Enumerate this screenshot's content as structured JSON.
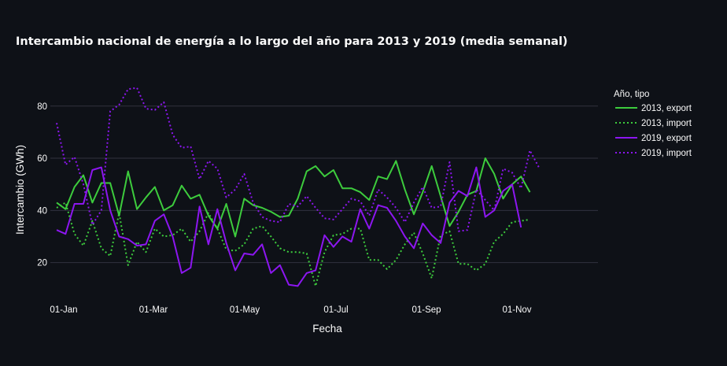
{
  "chart_data": {
    "type": "line",
    "title": "Intercambio nacional de energía a lo largo del año para 2013 y 2019 (media semanal)",
    "xlabel": "Fecha",
    "ylabel": "Intercambio (GWh)",
    "x_ticks": [
      "01-Jan",
      "01-Mar",
      "01-May",
      "01-Jul",
      "01-Sep",
      "01-Nov"
    ],
    "y_ticks": [
      20,
      40,
      60,
      80
    ],
    "ylim": [
      6,
      92
    ],
    "grid": true,
    "legend": {
      "title": "Año, tipo",
      "position": "right"
    },
    "colors": {
      "2013": "#3dcc3d",
      "2019": "#8c16f0"
    },
    "series": [
      {
        "name": "2013, export",
        "color": "#3dcc3d",
        "dash": "solid",
        "values": [
          43,
          40.5,
          49,
          53.5,
          43,
          50.5,
          50.5,
          38,
          55,
          40.5,
          45,
          49,
          40,
          42,
          49.5,
          44.5,
          46,
          38,
          33,
          42.5,
          30,
          44.5,
          42,
          41,
          39.5,
          37.5,
          38,
          44.5,
          55,
          57,
          53,
          55.5,
          48.5,
          48.5,
          47,
          44,
          53,
          52,
          59,
          48,
          38.5,
          47,
          57,
          45.5,
          34,
          39.5,
          46,
          47.5,
          60,
          54,
          44.5,
          50,
          53,
          47
        ]
      },
      {
        "name": "2013, import",
        "color": "#3dcc3d",
        "dash": "dot",
        "values": [
          41,
          43,
          31,
          26.5,
          36,
          25.5,
          22.5,
          39,
          19,
          28,
          24,
          33,
          30,
          30.5,
          33,
          28,
          32,
          39,
          33,
          25,
          24.5,
          27,
          33,
          34,
          30,
          25.5,
          24,
          24,
          23.5,
          11,
          24,
          30.5,
          31,
          33,
          33,
          21,
          21,
          17.5,
          21,
          27,
          31.5,
          23.5,
          14,
          30.5,
          32,
          19.5,
          19.5,
          17,
          19.5,
          28,
          31,
          35.5,
          36,
          36.5
        ]
      },
      {
        "name": "2019, export",
        "color": "#8c16f0",
        "dash": "solid",
        "values": [
          32.5,
          31,
          42.5,
          42.5,
          55.5,
          56.5,
          40,
          30,
          29,
          26.5,
          27,
          36,
          38.5,
          30,
          16,
          18,
          41.5,
          27,
          40.5,
          27.5,
          17,
          23.5,
          23,
          27,
          16,
          19,
          11.5,
          11,
          16,
          17,
          30.5,
          26,
          30,
          28,
          40.5,
          33,
          42,
          41,
          36,
          30,
          25.5,
          35,
          30.5,
          27.5,
          43,
          47.5,
          45.5,
          56.5,
          37.5,
          40,
          47.5,
          50,
          33.5
        ]
      },
      {
        "name": "2019, import",
        "color": "#8c16f0",
        "dash": "dot",
        "values": [
          73.5,
          57.5,
          60.5,
          50,
          34.5,
          40,
          78,
          80.5,
          86.5,
          87,
          79,
          78.5,
          81.5,
          69,
          64,
          64.5,
          52,
          59,
          56,
          45,
          48,
          54,
          43,
          37.5,
          36,
          35.5,
          42.5,
          41.5,
          45.5,
          41,
          37,
          36.5,
          40.5,
          44.5,
          43.5,
          38,
          48,
          45,
          41,
          35.5,
          43,
          49,
          41,
          41.5,
          58.5,
          32,
          32.5,
          48,
          44,
          40,
          56,
          54.5,
          48.5,
          63,
          56.5
        ]
      }
    ]
  }
}
